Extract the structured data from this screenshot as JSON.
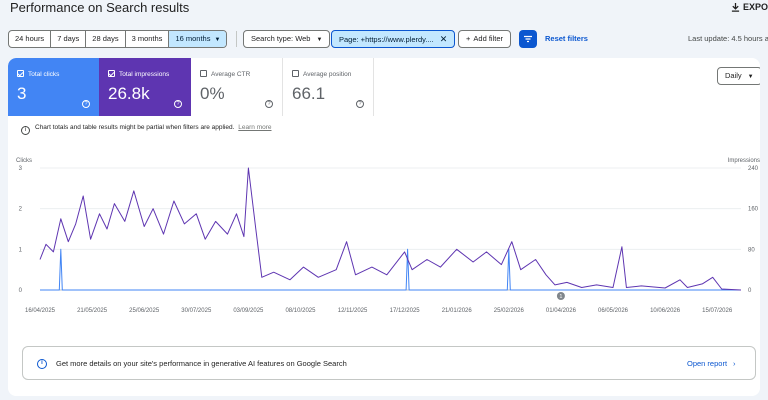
{
  "header": {
    "title": "Performance on Search results",
    "export_label": "EXPOR"
  },
  "filters": {
    "date_ranges": [
      "24 hours",
      "7 days",
      "28 days",
      "3 months",
      "16 months"
    ],
    "active_range": "16 months",
    "search_type": "Search type: Web",
    "page_filter": "Page: +https://www.plerdy....",
    "add_filter": "Add filter",
    "reset": "Reset filters",
    "last_update": "Last update: 4.5 hours a"
  },
  "metrics": {
    "clicks": {
      "label": "Total clicks",
      "value": "3",
      "checked": true
    },
    "impressions": {
      "label": "Total impressions",
      "value": "26.8k",
      "checked": true
    },
    "ctr": {
      "label": "Average CTR",
      "value": "0%",
      "checked": false
    },
    "position": {
      "label": "Average position",
      "value": "66.1",
      "checked": false
    }
  },
  "granularity": "Daily",
  "notice": {
    "text": "Chart totals and table results might be partial when filters are applied.",
    "link": "Learn more"
  },
  "promo": {
    "text": "Get more details on your site's performance in generative AI features on Google Search",
    "link": "Open report"
  },
  "colors": {
    "clicks": "#4285f4",
    "impressions": "#5e35b1",
    "accent": "#0b57d0",
    "chip_active": "#c2e7ff"
  },
  "icons": {
    "export": "download-icon",
    "filter": "filter-lines-icon",
    "info": "info-icon",
    "help": "help-circle-icon",
    "annotation": "annotation-marker-icon"
  },
  "chart_data": {
    "type": "line",
    "ylabel_left": "Clicks",
    "ylabel_right": "Impressions",
    "left_ticks": [
      "0",
      "1",
      "2",
      "3"
    ],
    "right_ticks": [
      "0",
      "80",
      "160",
      "240"
    ],
    "ylim_left": [
      0,
      3
    ],
    "ylim_right": [
      0,
      240
    ],
    "x_ticks": [
      "16/04/2025",
      "21/05/2025",
      "25/06/2025",
      "30/07/2025",
      "03/09/2025",
      "08/10/2025",
      "12/11/2025",
      "17/12/2025",
      "21/01/2026",
      "25/02/2026",
      "01/04/2026",
      "06/05/2026",
      "10/06/2026",
      "15/07/2026"
    ],
    "grid": true,
    "annotation_marker": {
      "label": "1",
      "date": "01/04/2026"
    },
    "series": [
      {
        "name": "Clicks",
        "axis": "left",
        "values": [
          {
            "date": "16/04/2025",
            "value": 0
          },
          {
            "date": "29/04/2025",
            "value": 0
          },
          {
            "date": "30/04/2025",
            "value": 1
          },
          {
            "date": "01/05/2025",
            "value": 0
          },
          {
            "date": "18/12/2025",
            "value": 0
          },
          {
            "date": "19/12/2025",
            "value": 1
          },
          {
            "date": "20/12/2025",
            "value": 0
          },
          {
            "date": "24/02/2026",
            "value": 0
          },
          {
            "date": "25/02/2026",
            "value": 1
          },
          {
            "date": "26/02/2026",
            "value": 0
          },
          {
            "date": "31/07/2026",
            "value": 0
          }
        ]
      },
      {
        "name": "Impressions",
        "axis": "right",
        "values": [
          {
            "date": "16/04/2025",
            "value": 60
          },
          {
            "date": "20/04/2025",
            "value": 90
          },
          {
            "date": "25/04/2025",
            "value": 75
          },
          {
            "date": "30/04/2025",
            "value": 140
          },
          {
            "date": "05/05/2025",
            "value": 95
          },
          {
            "date": "10/05/2025",
            "value": 130
          },
          {
            "date": "15/05/2025",
            "value": 185
          },
          {
            "date": "20/05/2025",
            "value": 100
          },
          {
            "date": "26/05/2025",
            "value": 150
          },
          {
            "date": "31/05/2025",
            "value": 120
          },
          {
            "date": "05/06/2025",
            "value": 170
          },
          {
            "date": "12/06/2025",
            "value": 135
          },
          {
            "date": "18/06/2025",
            "value": 195
          },
          {
            "date": "25/06/2025",
            "value": 125
          },
          {
            "date": "01/07/2025",
            "value": 160
          },
          {
            "date": "08/07/2025",
            "value": 110
          },
          {
            "date": "15/07/2025",
            "value": 175
          },
          {
            "date": "22/07/2025",
            "value": 130
          },
          {
            "date": "30/07/2025",
            "value": 150
          },
          {
            "date": "05/08/2025",
            "value": 100
          },
          {
            "date": "12/08/2025",
            "value": 135
          },
          {
            "date": "20/08/2025",
            "value": 110
          },
          {
            "date": "26/08/2025",
            "value": 150
          },
          {
            "date": "31/08/2025",
            "value": 105
          },
          {
            "date": "03/09/2025",
            "value": 240
          },
          {
            "date": "08/09/2025",
            "value": 120
          },
          {
            "date": "12/09/2025",
            "value": 25
          },
          {
            "date": "20/09/2025",
            "value": 35
          },
          {
            "date": "01/10/2025",
            "value": 20
          },
          {
            "date": "10/10/2025",
            "value": 45
          },
          {
            "date": "20/10/2025",
            "value": 25
          },
          {
            "date": "01/11/2025",
            "value": 40
          },
          {
            "date": "08/11/2025",
            "value": 95
          },
          {
            "date": "14/11/2025",
            "value": 30
          },
          {
            "date": "25/11/2025",
            "value": 45
          },
          {
            "date": "05/12/2025",
            "value": 30
          },
          {
            "date": "17/12/2025",
            "value": 75
          },
          {
            "date": "22/12/2025",
            "value": 40
          },
          {
            "date": "01/01/2026",
            "value": 60
          },
          {
            "date": "10/01/2026",
            "value": 45
          },
          {
            "date": "21/01/2026",
            "value": 80
          },
          {
            "date": "01/02/2026",
            "value": 55
          },
          {
            "date": "10/02/2026",
            "value": 75
          },
          {
            "date": "20/02/2026",
            "value": 50
          },
          {
            "date": "27/02/2026",
            "value": 95
          },
          {
            "date": "05/03/2026",
            "value": 40
          },
          {
            "date": "15/03/2026",
            "value": 60
          },
          {
            "date": "22/03/2026",
            "value": 30
          },
          {
            "date": "28/03/2026",
            "value": 10
          },
          {
            "date": "05/04/2026",
            "value": 15
          },
          {
            "date": "15/04/2026",
            "value": 5
          },
          {
            "date": "25/04/2026",
            "value": 10
          },
          {
            "date": "06/05/2026",
            "value": 5
          },
          {
            "date": "12/05/2026",
            "value": 85
          },
          {
            "date": "15/05/2026",
            "value": 5
          },
          {
            "date": "25/05/2026",
            "value": 8
          },
          {
            "date": "10/06/2026",
            "value": 4
          },
          {
            "date": "20/06/2026",
            "value": 20
          },
          {
            "date": "25/06/2026",
            "value": 5
          },
          {
            "date": "05/07/2026",
            "value": 12
          },
          {
            "date": "12/07/2026",
            "value": 25
          },
          {
            "date": "18/07/2026",
            "value": 2
          },
          {
            "date": "31/07/2026",
            "value": 0
          }
        ]
      }
    ]
  }
}
